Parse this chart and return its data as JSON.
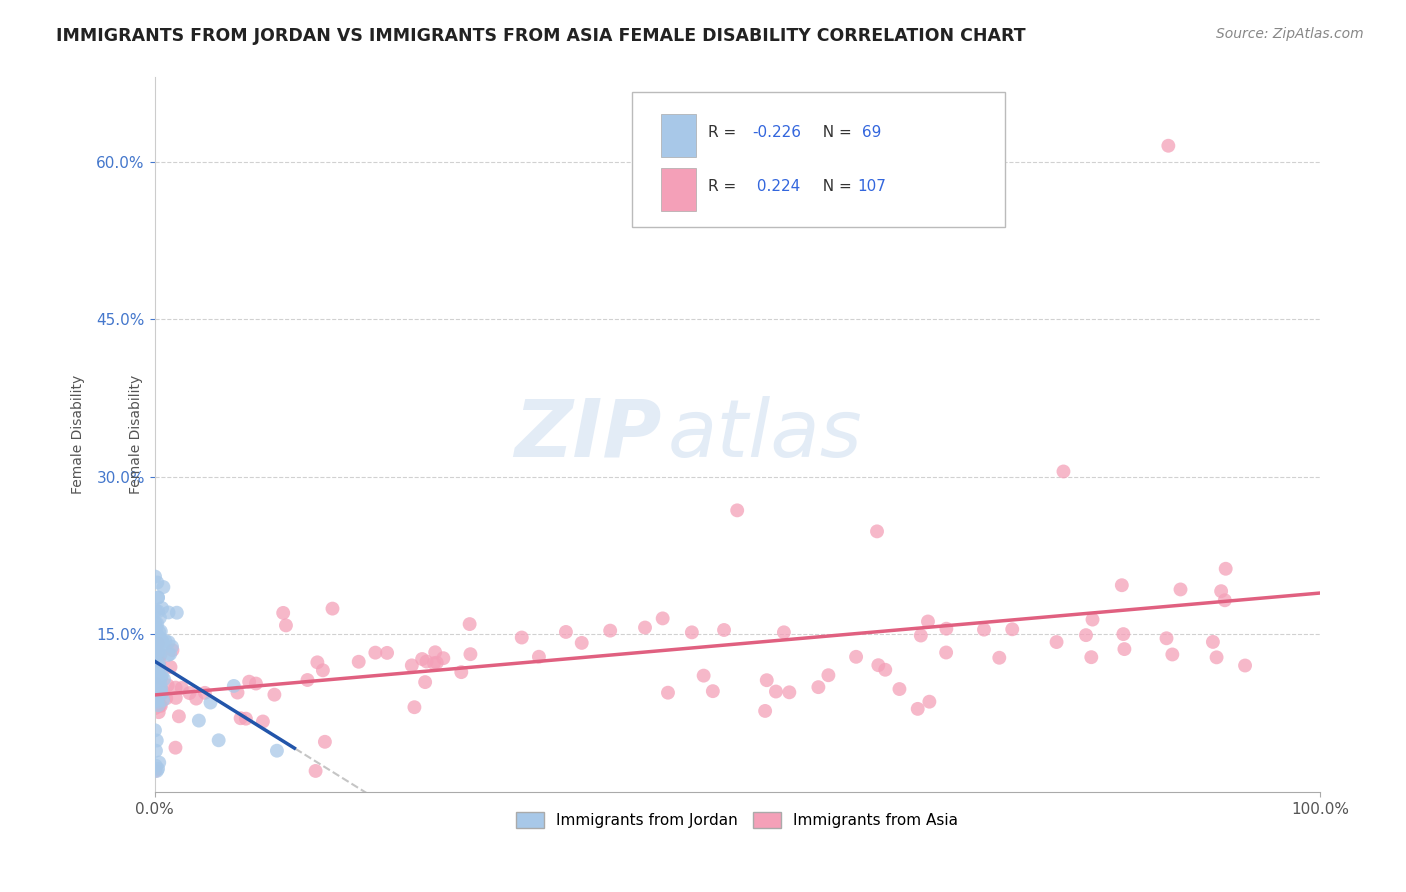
{
  "title": "IMMIGRANTS FROM JORDAN VS IMMIGRANTS FROM ASIA FEMALE DISABILITY CORRELATION CHART",
  "source": "Source: ZipAtlas.com",
  "ylabel": "Female Disability",
  "legend_labels": [
    "Immigrants from Jordan",
    "Immigrants from Asia"
  ],
  "r_jordan": -0.226,
  "n_jordan": 69,
  "r_asia": 0.224,
  "n_asia": 107,
  "xlim": [
    0.0,
    1.0
  ],
  "ylim": [
    0.0,
    0.68
  ],
  "yticks": [
    0.15,
    0.3,
    0.45,
    0.6
  ],
  "ytick_labels": [
    "15.0%",
    "30.0%",
    "45.0%",
    "60.0%"
  ],
  "xtick_labels": [
    "0.0%",
    "100.0%"
  ],
  "color_jordan": "#a8c8e8",
  "color_asia": "#f4a0b8",
  "trendline_jordan": "#2255aa",
  "trendline_asia": "#e06080",
  "trendline_gray": "#bbbbbb",
  "background_color": "#ffffff",
  "watermark_zip": "ZIP",
  "watermark_atlas": "atlas",
  "title_color": "#222222",
  "source_color": "#888888",
  "ylabel_color": "#555555",
  "tick_label_color_y": "#4477cc",
  "tick_label_color_x": "#555555",
  "legend_text_dark": "#333333",
  "legend_text_blue": "#3366dd"
}
